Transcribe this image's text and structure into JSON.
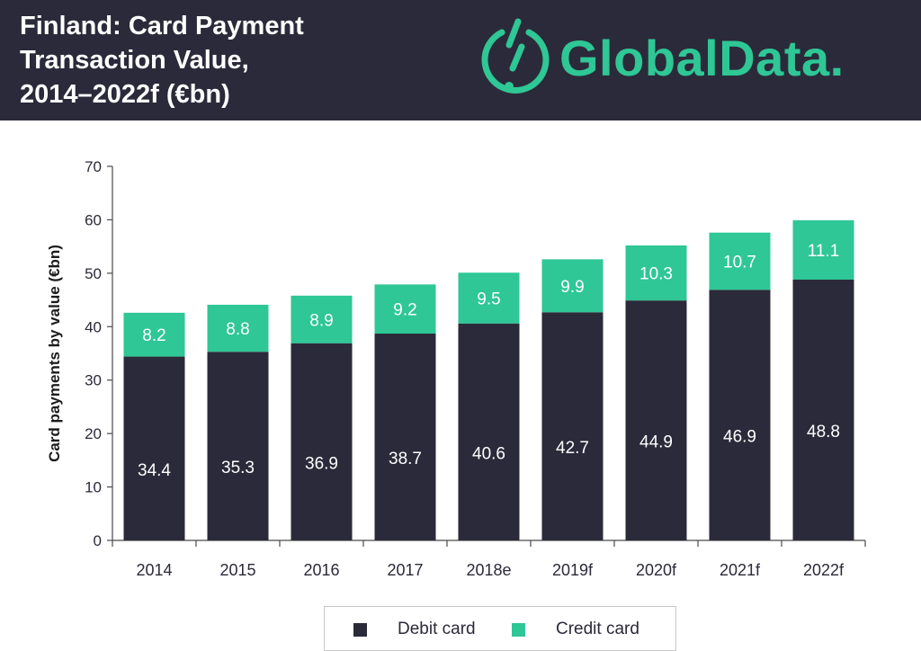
{
  "header": {
    "title_lines": [
      "Finland: Card Payment",
      "Transaction Value,",
      "2014–2022f (€bn)"
    ],
    "logo_text": "GlobalData.",
    "background": "#2b2a3a",
    "logo_color": "#2ec795"
  },
  "chart_data": {
    "type": "bar",
    "stacked": true,
    "categories": [
      "2014",
      "2015",
      "2016",
      "2017",
      "2018e",
      "2019f",
      "2020f",
      "2021f",
      "2022f"
    ],
    "series": [
      {
        "name": "Debit card",
        "color": "#2b2a3a",
        "values": [
          34.4,
          35.3,
          36.9,
          38.7,
          40.6,
          42.7,
          44.9,
          46.9,
          48.8
        ]
      },
      {
        "name": "Credit card",
        "color": "#2ec795",
        "values": [
          8.2,
          8.8,
          8.9,
          9.2,
          9.5,
          9.9,
          10.3,
          10.7,
          11.1
        ]
      }
    ],
    "ylabel": "Card payments by value (€bn)",
    "ylim": [
      0,
      70
    ],
    "yticks": [
      0,
      10,
      20,
      30,
      40,
      50,
      60,
      70
    ],
    "grid": false,
    "legend_position": "bottom"
  }
}
